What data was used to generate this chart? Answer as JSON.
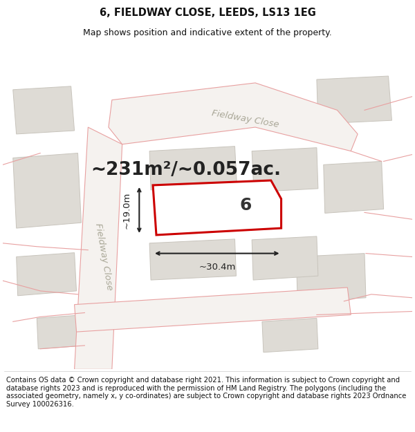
{
  "title": "6, FIELDWAY CLOSE, LEEDS, LS13 1EG",
  "subtitle": "Map shows position and indicative extent of the property.",
  "area_text": "~231m²/~0.057ac.",
  "property_number": "6",
  "dim_width": "~30.4m",
  "dim_height": "~19.0m",
  "footer": "Contains OS data © Crown copyright and database right 2021. This information is subject to Crown copyright and database rights 2023 and is reproduced with the permission of HM Land Registry. The polygons (including the associated geometry, namely x, y co-ordinates) are subject to Crown copyright and database rights 2023 Ordnance Survey 100026316.",
  "map_bg": "#f7f5f2",
  "property_fill": "#ffffff",
  "property_edge": "#cc0000",
  "building_fill": "#dedbd5",
  "building_edge": "#c8c4bc",
  "road_outline": "#e8a0a0",
  "street_name1": "Fieldway Close",
  "street_name2": "Fieldway Close",
  "title_fontsize": 10.5,
  "subtitle_fontsize": 9,
  "area_fontsize": 19,
  "footer_fontsize": 7.2,
  "prop_number_fontsize": 18
}
